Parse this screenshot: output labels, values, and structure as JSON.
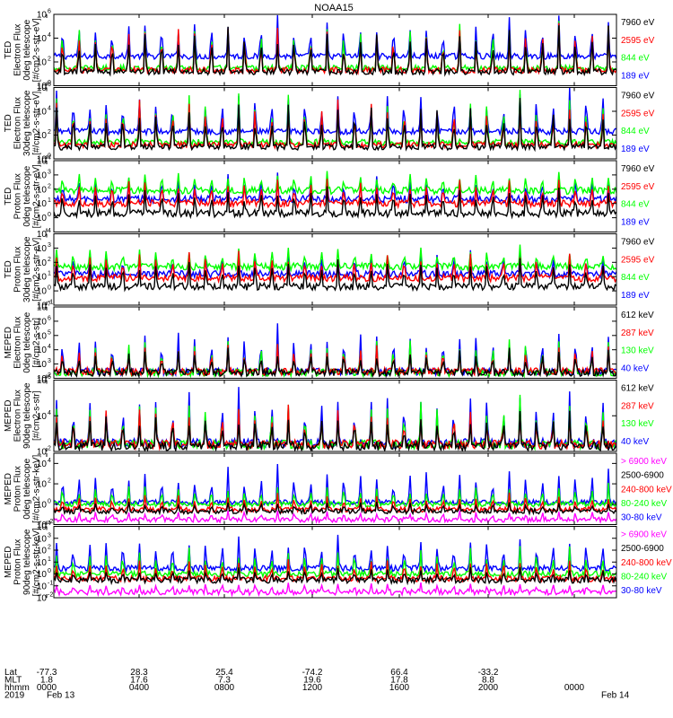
{
  "title": "NOAA15",
  "colors": {
    "blue": "#0000ff",
    "red": "#ff0000",
    "green": "#00ff00",
    "black": "#000000",
    "magenta": "#ff00ff"
  },
  "chart_data": [
    {
      "type": "line",
      "ylabel_lines": [
        "TED",
        "Electron Flux",
        "0deg telescope",
        "[#/cm2-s-str-eV]"
      ],
      "scale": "log",
      "ylim": [
        1,
        1000000
      ],
      "y_ticks": [
        {
          "label": "10",
          "exp": "0",
          "v": 1
        },
        {
          "label": "10",
          "exp": "2",
          "v": 100
        },
        {
          "label": "10",
          "exp": "4",
          "v": 10000
        },
        {
          "label": "10",
          "exp": "6",
          "v": 1000000
        }
      ],
      "series": [
        {
          "name": "7960 eV",
          "color": "black",
          "base": 15,
          "peak": 300000
        },
        {
          "name": "2595 eV",
          "color": "red",
          "base": 20,
          "peak": 500000
        },
        {
          "name": "844 eV",
          "color": "green",
          "base": 30,
          "peak": 800000
        },
        {
          "name": "189 eV",
          "color": "blue",
          "base": 300,
          "peak": 2000000
        }
      ]
    },
    {
      "type": "line",
      "ylabel_lines": [
        "TED",
        "Electron Flux",
        "30deg telescope",
        "[#/cm2-s-str-eV]"
      ],
      "scale": "log",
      "ylim": [
        1,
        1000000
      ],
      "y_ticks": [
        {
          "label": "10",
          "exp": "0",
          "v": 1
        },
        {
          "label": "10",
          "exp": "2",
          "v": 100
        },
        {
          "label": "10",
          "exp": "4",
          "v": 10000
        },
        {
          "label": "10",
          "exp": "6",
          "v": 1000000
        }
      ],
      "series": [
        {
          "name": "7960 eV",
          "color": "black",
          "base": 10,
          "peak": 300000
        },
        {
          "name": "2595 eV",
          "color": "red",
          "base": 15,
          "peak": 500000
        },
        {
          "name": "844 eV",
          "color": "green",
          "base": 25,
          "peak": 800000
        },
        {
          "name": "189 eV",
          "color": "blue",
          "base": 200,
          "peak": 2000000
        }
      ]
    },
    {
      "type": "line",
      "ylabel_lines": [
        "TED",
        "Proton Flux",
        "0deg telescope",
        "[#/cm2-s-str-eV]"
      ],
      "scale": "log",
      "ylim": [
        0.1,
        10000
      ],
      "y_ticks": [
        {
          "label": "10",
          "exp": "0",
          "v": 1
        },
        {
          "label": "10",
          "exp": "1",
          "v": 10
        },
        {
          "label": "10",
          "exp": "2",
          "v": 100
        },
        {
          "label": "10",
          "exp": "3",
          "v": 1000
        },
        {
          "label": "10",
          "exp": "4",
          "v": 10000
        }
      ],
      "series": [
        {
          "name": "7960 eV",
          "color": "black",
          "base": 2,
          "peak": 300
        },
        {
          "name": "2595 eV",
          "color": "red",
          "base": 10,
          "peak": 1000
        },
        {
          "name": "844 eV",
          "color": "green",
          "base": 80,
          "peak": 3000
        },
        {
          "name": "189 eV",
          "color": "blue",
          "base": 20,
          "peak": 2000
        }
      ]
    },
    {
      "type": "line",
      "ylabel_lines": [
        "TED",
        "Proton Flux",
        "30deg telescope",
        "[#/cm2-s-str-eV]"
      ],
      "scale": "log",
      "ylim": [
        0.1,
        10000
      ],
      "y_ticks": [
        {
          "label": "10",
          "exp": "-1",
          "v": 0.1
        },
        {
          "label": "10",
          "exp": "0",
          "v": 1
        },
        {
          "label": "10",
          "exp": "1",
          "v": 10
        },
        {
          "label": "10",
          "exp": "2",
          "v": 100
        },
        {
          "label": "10",
          "exp": "3",
          "v": 1000
        },
        {
          "label": "10",
          "exp": "4",
          "v": 10000
        }
      ],
      "series": [
        {
          "name": "7960 eV",
          "color": "black",
          "base": 2,
          "peak": 300
        },
        {
          "name": "2595 eV",
          "color": "red",
          "base": 8,
          "peak": 800
        },
        {
          "name": "844 eV",
          "color": "green",
          "base": 50,
          "peak": 2000
        },
        {
          "name": "189 eV",
          "color": "blue",
          "base": 15,
          "peak": 1500
        }
      ]
    },
    {
      "type": "line",
      "ylabel_lines": [
        "MEPED",
        "Electron Flux",
        "0deg telescope",
        "[#/cm2-s-str]"
      ],
      "scale": "log",
      "ylim": [
        100,
        10000000
      ],
      "y_ticks": [
        {
          "label": "10",
          "exp": "2",
          "v": 100
        },
        {
          "label": "10",
          "exp": "3",
          "v": 1000
        },
        {
          "label": "10",
          "exp": "4",
          "v": 10000
        },
        {
          "label": "10",
          "exp": "5",
          "v": 100000
        },
        {
          "label": "10",
          "exp": "6",
          "v": 1000000
        },
        {
          "label": "10",
          "exp": "7",
          "v": 10000000
        }
      ],
      "series": [
        {
          "name": "612 keV",
          "color": "black",
          "base": 250,
          "peak": 20000
        },
        {
          "name": "287 keV",
          "color": "red",
          "base": 300,
          "peak": 50000
        },
        {
          "name": "130 keV",
          "color": "green",
          "base": 250,
          "peak": 200000
        },
        {
          "name": "40 keV",
          "color": "blue",
          "base": 300,
          "peak": 1000000
        }
      ]
    },
    {
      "type": "line",
      "ylabel_lines": [
        "MEPED",
        "Electron Flux",
        "90deg telescope",
        "[#/cm2-s-str]"
      ],
      "scale": "log",
      "ylim": [
        100,
        1000000
      ],
      "y_ticks": [
        {
          "label": "10",
          "exp": "2",
          "v": 100
        },
        {
          "label": "10",
          "exp": "4",
          "v": 10000
        },
        {
          "label": "10",
          "exp": "6",
          "v": 1000000
        }
      ],
      "series": [
        {
          "name": "612 keV",
          "color": "black",
          "base": 200,
          "peak": 30000
        },
        {
          "name": "287 keV",
          "color": "red",
          "base": 250,
          "peak": 60000
        },
        {
          "name": "130 keV",
          "color": "green",
          "base": 250,
          "peak": 200000
        },
        {
          "name": "40 keV",
          "color": "blue",
          "base": 300,
          "peak": 600000
        }
      ]
    },
    {
      "type": "line",
      "ylabel_lines": [
        "MEPED",
        "Proton Flux",
        "0deg telescope",
        "[#/cm2-s-str-keV]"
      ],
      "scale": "log",
      "ylim": [
        0.01,
        100000
      ],
      "y_ticks": [
        {
          "label": "10",
          "exp": "-2",
          "v": 0.01
        },
        {
          "label": "10",
          "exp": "0",
          "v": 1
        },
        {
          "label": "10",
          "exp": "2",
          "v": 100
        },
        {
          "label": "10",
          "exp": "4",
          "v": 10000
        }
      ],
      "series": [
        {
          "name": "> 6900 keV",
          "color": "magenta",
          "base": 0.03,
          "peak": 0.4
        },
        {
          "name": "2500-6900",
          "color": "black",
          "base": 0.2,
          "peak": 3
        },
        {
          "name": "240-800 keV",
          "color": "red",
          "base": 0.3,
          "peak": 20
        },
        {
          "name": "80-240 keV",
          "color": "green",
          "base": 1,
          "peak": 200
        },
        {
          "name": "30-80 keV",
          "color": "blue",
          "base": 1.5,
          "peak": 10000
        }
      ]
    },
    {
      "type": "line",
      "ylabel_lines": [
        "MEPED",
        "Proton Flux",
        "90deg telescope",
        "[#/cm2-s-str-keV]"
      ],
      "scale": "log",
      "ylim": [
        0.01,
        10000
      ],
      "y_ticks": [
        {
          "label": "10",
          "exp": "-2",
          "v": 0.01
        },
        {
          "label": "10",
          "exp": "-1",
          "v": 0.1
        },
        {
          "label": "10",
          "exp": "0",
          "v": 1
        },
        {
          "label": "10",
          "exp": "1",
          "v": 10
        },
        {
          "label": "10",
          "exp": "2",
          "v": 100
        },
        {
          "label": "10",
          "exp": "3",
          "v": 1000
        },
        {
          "label": "10",
          "exp": "4",
          "v": 10000
        }
      ],
      "series": [
        {
          "name": "> 6900 keV",
          "color": "magenta",
          "base": 0.03,
          "peak": 0.3
        },
        {
          "name": "2500-6900",
          "color": "black",
          "base": 0.3,
          "peak": 5
        },
        {
          "name": "240-800 keV",
          "color": "red",
          "base": 0.4,
          "peak": 30
        },
        {
          "name": "80-240 keV",
          "color": "green",
          "base": 1,
          "peak": 300
        },
        {
          "name": "30-80 keV",
          "color": "blue",
          "base": 3,
          "peak": 5000
        }
      ]
    }
  ],
  "x_axis": {
    "row_labels": [
      "Lat",
      "MLT",
      "hhmm",
      "2019"
    ],
    "ticks": [
      {
        "lat": "-77.3",
        "mlt": "1.8",
        "hhmm": "0000",
        "date": "Feb 13"
      },
      {
        "lat": "28.3",
        "mlt": "17.6",
        "hhmm": "0400",
        "date": ""
      },
      {
        "lat": "25.4",
        "mlt": "7.3",
        "hhmm": "0800",
        "date": ""
      },
      {
        "lat": "-74.2",
        "mlt": "19.6",
        "hhmm": "1200",
        "date": ""
      },
      {
        "lat": "66.4",
        "mlt": "17.8",
        "hhmm": "1600",
        "date": ""
      },
      {
        "lat": "-33.2",
        "mlt": "8.8",
        "hhmm": "2000",
        "date": ""
      },
      {
        "lat": "",
        "mlt": "",
        "hhmm": "0000",
        "date": "Feb 14"
      }
    ]
  }
}
